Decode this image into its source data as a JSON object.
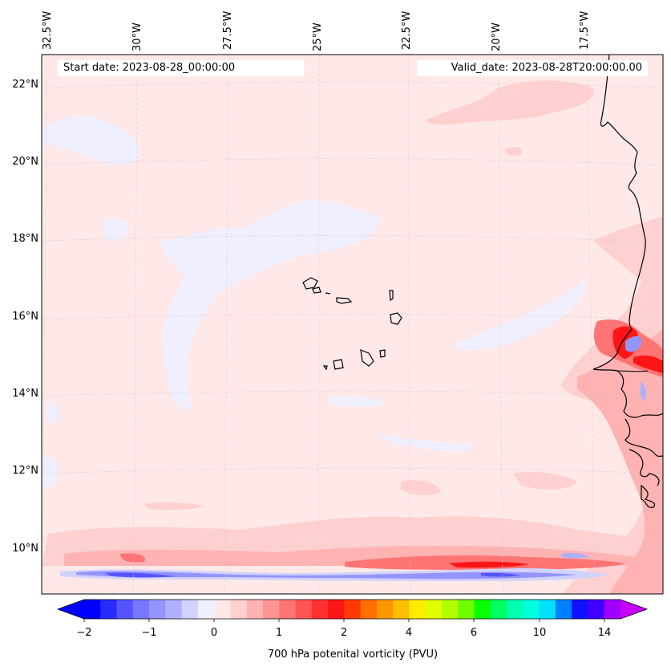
{
  "header": {
    "start_date": "Start date: 2023-08-28_00:00:00",
    "valid_date": "Valid_date: 2023-08-28T20:00:00.00"
  },
  "axes": {
    "longitude_labels": [
      "32.5°W",
      "30°W",
      "27.5°W",
      "25°W",
      "22.5°W",
      "20°W",
      "17.5°W"
    ],
    "latitude_labels": [
      "22°N",
      "20°N",
      "18°N",
      "16°N",
      "14°N",
      "12°N",
      "10°N"
    ]
  },
  "colorbar": {
    "tick_labels": [
      "−2",
      "−1",
      "0",
      "1",
      "2",
      "4",
      "6",
      "10",
      "14"
    ],
    "title": "700 hPa potenital vorticity (PVU)",
    "colors": [
      "#0000ff",
      "#2a2aff",
      "#5555ff",
      "#7777ff",
      "#9494ff",
      "#b0b0ff",
      "#d2d2ff",
      "#efefff",
      "#ffe8e8",
      "#ffd0d0",
      "#ffb2b2",
      "#ff9494",
      "#ff7474",
      "#ff5555",
      "#ff3030",
      "#ff1515",
      "#ff3a00",
      "#ff6e00",
      "#ff9800",
      "#ffbe00",
      "#ffec00",
      "#e0ff00",
      "#b0ff00",
      "#70ff00",
      "#08ff00",
      "#00ff60",
      "#00ffb0",
      "#00ffde",
      "#00e0ff",
      "#0080ff",
      "#1010ff",
      "#4000ff",
      "#a000ff"
    ],
    "extend_min_color": "#0000ff",
    "extend_max_color": "#c800ff"
  },
  "map": {
    "background_color": "#ffe8e8",
    "negative_color": "#efefff",
    "coastline_color": "#000000"
  }
}
